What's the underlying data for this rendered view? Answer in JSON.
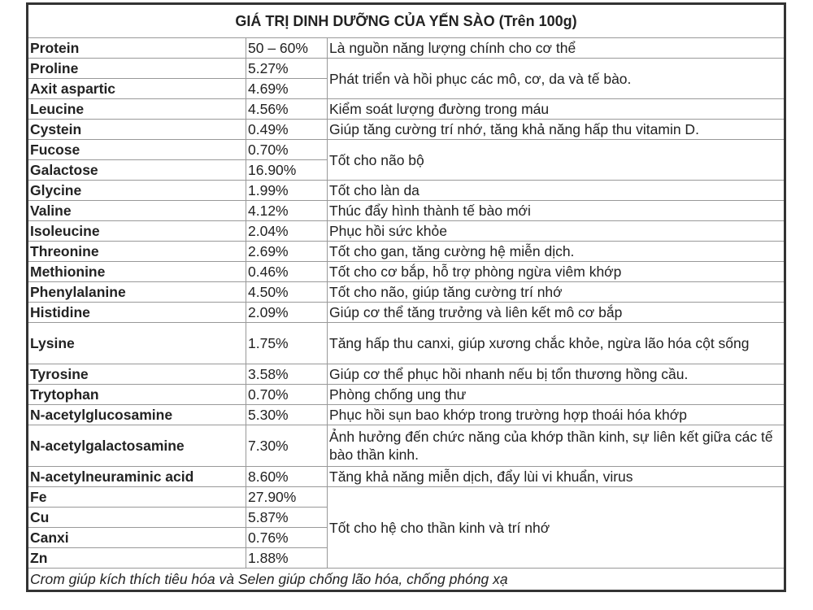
{
  "title": "GIÁ TRỊ DINH DƯỠNG CỦA YẾN SÀO (Trên 100g)",
  "rows": [
    {
      "name": "Protein",
      "value": "50 – 60%",
      "desc": "Là nguồn năng lượng chính cho cơ thể",
      "span": 1
    },
    {
      "name": "Proline",
      "value": "5.27%",
      "desc": "Phát triển và hồi phục các mô, cơ, da và tế bào.",
      "span": 2
    },
    {
      "name": "Axit aspartic",
      "value": "4.69%"
    },
    {
      "name": "Leucine",
      "value": "4.56%",
      "desc": "Kiểm soát lượng đường trong máu",
      "span": 1
    },
    {
      "name": "Cystein",
      "value": "0.49%",
      "desc": "Giúp tăng cường trí nhớ, tăng khả năng hấp thu vitamin D.",
      "span": 1
    },
    {
      "name": "Fucose",
      "value": "0.70%",
      "desc": "Tốt cho não bộ",
      "span": 2
    },
    {
      "name": "Galactose",
      "value": "16.90%"
    },
    {
      "name": "Glycine",
      "value": "1.99%",
      "desc": "Tốt cho làn da",
      "span": 1
    },
    {
      "name": "Valine",
      "value": "4.12%",
      "desc": "Thúc đẩy hình thành tế bào mới",
      "span": 1
    },
    {
      "name": "Isoleucine",
      "value": "2.04%",
      "desc": "Phục hồi sức khỏe",
      "span": 1
    },
    {
      "name": "Threonine",
      "value": "2.69%",
      "desc": "Tốt cho gan, tăng cường hệ miễn dịch.",
      "span": 1
    },
    {
      "name": "Methionine",
      "value": "0.46%",
      "desc": "Tốt cho cơ bắp, hỗ trợ phòng ngừa viêm khớp",
      "span": 1
    },
    {
      "name": "Phenylalanine",
      "value": "4.50%",
      "desc": "Tốt cho não, giúp tăng cường trí nhớ",
      "span": 1
    },
    {
      "name": "Histidine",
      "value": "2.09%",
      "desc": "Giúp cơ thể tăng trưởng và liên kết mô cơ bắp",
      "span": 1
    },
    {
      "name": "Lysine",
      "value": "1.75%",
      "desc": "Tăng hấp thu canxi, giúp xương chắc khỏe, ngừa lão hóa cột sống",
      "span": 1,
      "tall": true
    },
    {
      "name": "Tyrosine",
      "value": "3.58%",
      "desc": "Giúp cơ thể phục hồi nhanh nếu bị tổn thương hồng cầu.",
      "span": 1
    },
    {
      "name": "Trytophan",
      "value": "0.70%",
      "desc": "Phòng chống ung thư",
      "span": 1
    },
    {
      "name": "N-acetylglucosamine",
      "value": "5.30%",
      "desc": "Phục hồi sụn bao khớp trong trường hợp thoái hóa khớp",
      "span": 1
    },
    {
      "name": "N-acetylgalactosamine",
      "value": "7.30%",
      "desc": "Ảnh hưởng đến chức năng của khớp thần kinh, sự liên kết giữa các tế bào thần kinh.",
      "span": 1,
      "tall": true
    },
    {
      "name": "N-acetylneuraminic acid",
      "value": "8.60%",
      "desc": "Tăng khả năng miễn dịch, đẩy lùi vi khuẩn, virus",
      "span": 1
    },
    {
      "name": "Fe",
      "value": "27.90%",
      "desc": "Tốt cho hệ cho thần kinh và trí nhớ",
      "span": 4
    },
    {
      "name": "Cu",
      "value": "5.87%"
    },
    {
      "name": "Canxi",
      "value": "0.76%"
    },
    {
      "name": "Zn",
      "value": "1.88%"
    }
  ],
  "footer": "Crom giúp kích thích tiêu hóa và Selen giúp chống lão hóa, chống phóng xạ"
}
